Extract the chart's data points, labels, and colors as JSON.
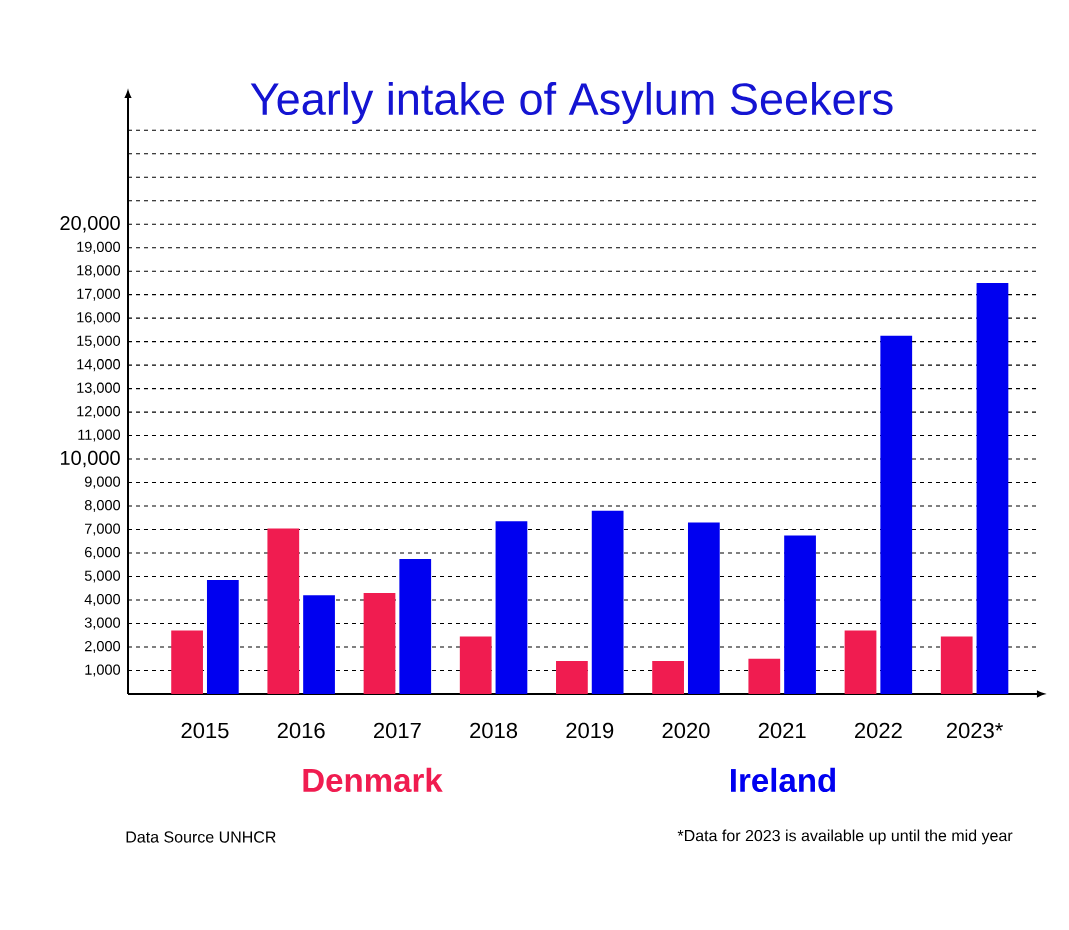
{
  "chart_data": {
    "type": "bar",
    "title": "Yearly intake of Asylum Seekers",
    "categories": [
      "2015",
      "2016",
      "2017",
      "2018",
      "2019",
      "2020",
      "2021",
      "2022",
      "2023*"
    ],
    "series": [
      {
        "name": "Denmark",
        "color": "#f01c50",
        "values": [
          2700,
          7050,
          4300,
          2450,
          1400,
          1400,
          1500,
          2700,
          2450
        ]
      },
      {
        "name": "Ireland",
        "color": "#0000f0",
        "values": [
          4850,
          4200,
          5750,
          7350,
          7800,
          7300,
          6750,
          15250,
          17500
        ]
      }
    ],
    "ylim": [
      0,
      25500
    ],
    "yticks": [
      {
        "value": 1000,
        "label": "1,000"
      },
      {
        "value": 2000,
        "label": "2,000"
      },
      {
        "value": 3000,
        "label": "3,000"
      },
      {
        "value": 4000,
        "label": "4,000"
      },
      {
        "value": 5000,
        "label": "5,000"
      },
      {
        "value": 6000,
        "label": "6,000"
      },
      {
        "value": 7000,
        "label": "7,000"
      },
      {
        "value": 8000,
        "label": "8,000"
      },
      {
        "value": 9000,
        "label": "9,000"
      },
      {
        "value": 10000,
        "label": "10,000"
      },
      {
        "value": 11000,
        "label": "11,000"
      },
      {
        "value": 12000,
        "label": "12,000"
      },
      {
        "value": 13000,
        "label": "13,000"
      },
      {
        "value": 14000,
        "label": "14,000"
      },
      {
        "value": 15000,
        "label": "15,000"
      },
      {
        "value": 16000,
        "label": "16,000"
      },
      {
        "value": 17000,
        "label": "17,000"
      },
      {
        "value": 18000,
        "label": "18,000"
      },
      {
        "value": 19000,
        "label": "19,000"
      },
      {
        "value": 20000,
        "label": "20,000"
      },
      {
        "value": 21000,
        "label": null
      },
      {
        "value": 22000,
        "label": null
      },
      {
        "value": 23000,
        "label": null
      },
      {
        "value": 24000,
        "label": null
      }
    ],
    "grid": "y",
    "legend": "bottom",
    "annotations": [
      "Data Source UNHCR",
      "*Data for 2023 is available up until the mid year"
    ]
  }
}
